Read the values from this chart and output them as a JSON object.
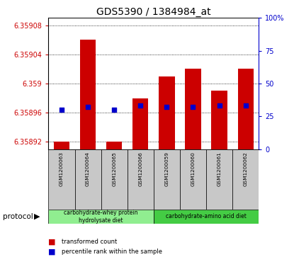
{
  "title": "GDS5390 / 1384984_at",
  "samples": [
    "GSM1200063",
    "GSM1200064",
    "GSM1200065",
    "GSM1200066",
    "GSM1200059",
    "GSM1200060",
    "GSM1200061",
    "GSM1200062"
  ],
  "transformed_counts": [
    6.35892,
    6.35906,
    6.35892,
    6.35898,
    6.35901,
    6.35902,
    6.35899,
    6.35902
  ],
  "percentile_ranks": [
    30,
    32,
    30,
    33,
    32,
    32,
    33,
    33
  ],
  "baseline": 6.35891,
  "ylim_left": [
    6.35891,
    6.35909
  ],
  "ylim_right": [
    0,
    100
  ],
  "yticks_left": [
    6.35892,
    6.35896,
    6.359,
    6.35904,
    6.35908
  ],
  "ytick_labels_left": [
    "6.35892",
    "6.35896",
    "6.359",
    "6.35904",
    "6.35908"
  ],
  "yticks_right": [
    0,
    25,
    50,
    75,
    100
  ],
  "ytick_labels_right": [
    "0",
    "25",
    "50",
    "75",
    "100%"
  ],
  "bar_color": "#cc0000",
  "dot_color": "#0000cc",
  "protocol_groups": [
    {
      "label": "carbohydrate-whey protein\nhydrolysate diet",
      "indices": [
        0,
        1,
        2,
        3
      ],
      "color": "#90ee90"
    },
    {
      "label": "carbohydrate-amino acid diet",
      "indices": [
        4,
        5,
        6,
        7
      ],
      "color": "#44cc44"
    }
  ],
  "bar_width": 0.6,
  "bg_color": "#c8c8c8",
  "legend_items": [
    {
      "label": "transformed count",
      "color": "#cc0000"
    },
    {
      "label": "percentile rank within the sample",
      "color": "#0000cc"
    }
  ]
}
